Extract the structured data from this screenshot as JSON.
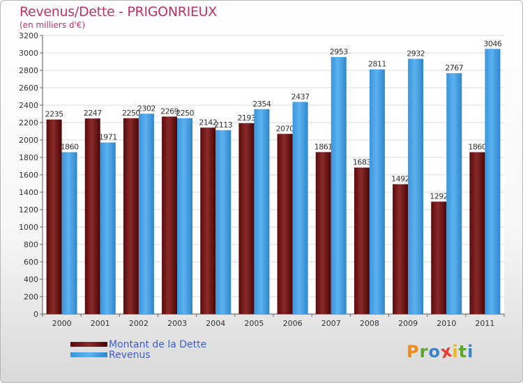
{
  "title": "Revenus/Dette - PRIGONRIEUX",
  "subtitle": "(en milliers d'€)",
  "brand": "Proxiti",
  "brand_letters": [
    {
      "ch": "P",
      "color": "#f08a1c"
    },
    {
      "ch": "r",
      "color": "#5aa62e"
    },
    {
      "ch": "o",
      "color": "#3c83c9"
    },
    {
      "ch": "x",
      "color": "#e63c2f"
    },
    {
      "ch": "i",
      "color": "#f0b51c"
    },
    {
      "ch": "t",
      "color": "#5aa62e"
    },
    {
      "ch": "i",
      "color": "#3c83c9"
    }
  ],
  "colors": {
    "series1": "#7a1f1f",
    "series2": "#4fa6e6",
    "title": "#c0306b",
    "legend_text": "#3d5bd7"
  },
  "chart_data": {
    "type": "bar",
    "categories": [
      "2000",
      "2001",
      "2002",
      "2003",
      "2004",
      "2005",
      "2006",
      "2007",
      "2008",
      "2009",
      "2010",
      "2011"
    ],
    "series": [
      {
        "name": "Montant de la Dette",
        "values": [
          2235,
          2247,
          2250,
          2269,
          2142,
          2193,
          2070,
          1861,
          1683,
          1492,
          1292,
          1860
        ],
        "labels": [
          "2235",
          "2247",
          "2250",
          "2269",
          "2142",
          "2193",
          "2070",
          "1861",
          "1683",
          "1492",
          "1292",
          "1860"
        ]
      },
      {
        "name": "Revenus",
        "values": [
          1860,
          1971,
          2302,
          2250,
          2113,
          2354,
          2437,
          2953,
          2811,
          2932,
          2767,
          3046
        ],
        "labels": [
          "1860",
          "1971",
          "2302",
          "2250",
          "2113",
          "2354",
          "2437",
          "2953",
          "2811",
          "2932",
          "2767",
          "3046"
        ]
      }
    ],
    "yticks": [
      "0",
      "200",
      "400",
      "600",
      "800",
      "1000",
      "1200",
      "1400",
      "1600",
      "1800",
      "2000",
      "2200",
      "2400",
      "2600",
      "2800",
      "3000",
      "3200"
    ],
    "ylim": [
      0,
      3200
    ],
    "grid": true,
    "legend_position": "bottom-left"
  }
}
